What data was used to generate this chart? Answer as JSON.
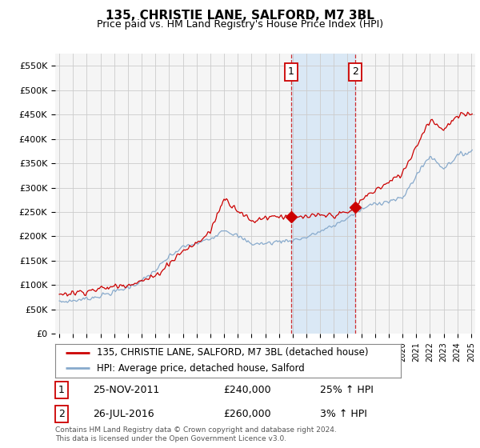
{
  "title": "135, CHRISTIE LANE, SALFORD, M7 3BL",
  "subtitle": "Price paid vs. HM Land Registry's House Price Index (HPI)",
  "legend_entry1": "135, CHRISTIE LANE, SALFORD, M7 3BL (detached house)",
  "legend_entry2": "HPI: Average price, detached house, Salford",
  "transaction1_date": "25-NOV-2011",
  "transaction1_price": "£240,000",
  "transaction1_hpi": "25% ↑ HPI",
  "transaction1_year": 2011.9,
  "transaction1_value": 240000,
  "transaction2_date": "26-JUL-2016",
  "transaction2_price": "£260,000",
  "transaction2_hpi": "3% ↑ HPI",
  "transaction2_year": 2016.55,
  "transaction2_value": 260000,
  "footer": "Contains HM Land Registry data © Crown copyright and database right 2024.\nThis data is licensed under the Open Government Licence v3.0.",
  "ylim": [
    0,
    575000
  ],
  "yticks": [
    0,
    50000,
    100000,
    150000,
    200000,
    250000,
    300000,
    350000,
    400000,
    450000,
    500000,
    550000
  ],
  "xlim_min": 1994.7,
  "xlim_max": 2025.3,
  "background_color": "#ffffff",
  "plot_bg_color": "#f5f5f5",
  "grid_color": "#cccccc",
  "red_color": "#cc0000",
  "blue_color": "#88aacc",
  "highlight_color": "#dae8f5"
}
